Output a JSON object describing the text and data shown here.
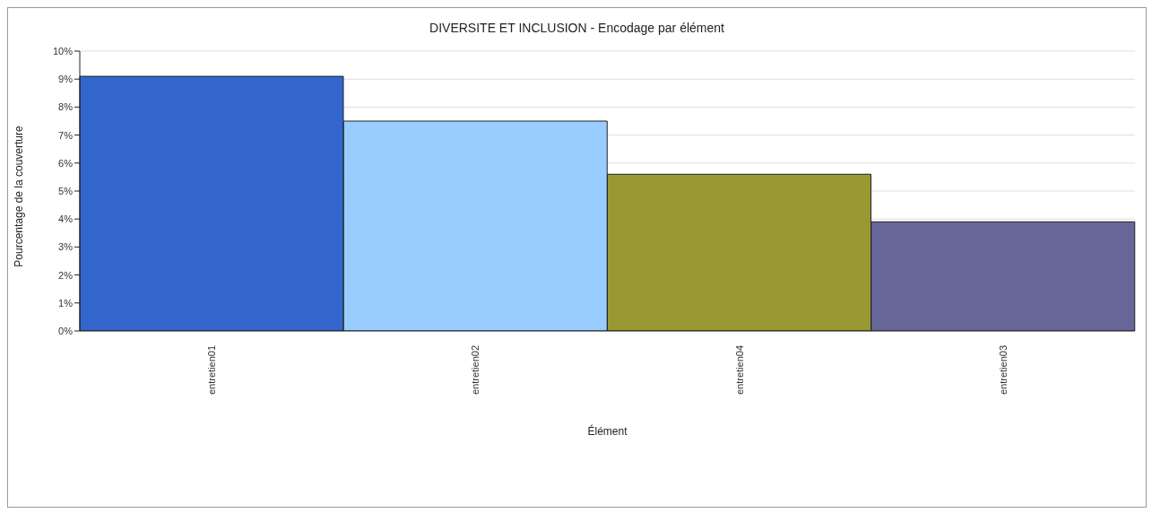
{
  "chart_data": {
    "type": "bar",
    "title": "DIVERSITE ET INCLUSION - Encodage par élément",
    "xlabel": "Élément",
    "ylabel": "Pourcentage de la couverture",
    "categories": [
      "entretien01",
      "entretien02",
      "entretien04",
      "entretien03"
    ],
    "values": [
      9.1,
      7.5,
      5.6,
      3.9
    ],
    "colors": [
      "#3366cc",
      "#99ccff",
      "#999933",
      "#666699"
    ],
    "ylim": [
      0,
      10
    ],
    "yticks": [
      {
        "value": 0,
        "label": "0%"
      },
      {
        "value": 1,
        "label": "1%"
      },
      {
        "value": 2,
        "label": "2%"
      },
      {
        "value": 3,
        "label": "3%"
      },
      {
        "value": 4,
        "label": "4%"
      },
      {
        "value": 5,
        "label": "5%"
      },
      {
        "value": 6,
        "label": "6%"
      },
      {
        "value": 7,
        "label": "7%"
      },
      {
        "value": 8,
        "label": "8%"
      },
      {
        "value": 9,
        "label": "9%"
      },
      {
        "value": 10,
        "label": "10%"
      }
    ],
    "grid": "y",
    "legend": false
  }
}
